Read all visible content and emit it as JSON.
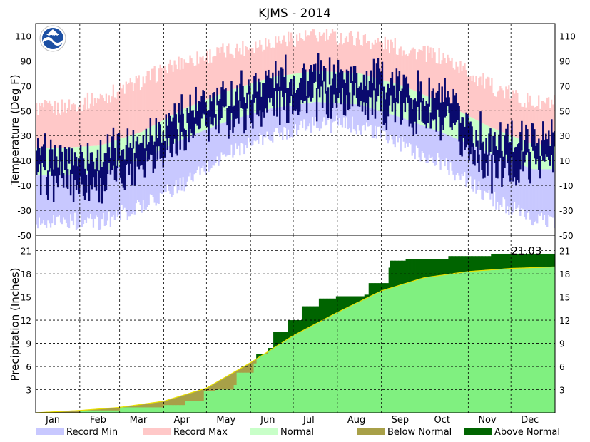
{
  "chart_data": [
    {
      "type": "area",
      "panel": "temperature",
      "title": "KJMS - 2014",
      "ylabel": "Temperature (Deg F)",
      "ylim": [
        -50,
        120
      ],
      "yticks": [
        110,
        90,
        70,
        50,
        30,
        10,
        -10,
        -30,
        -50
      ],
      "months": [
        "Jan",
        "Feb",
        "Mar",
        "Apr",
        "May",
        "Jun",
        "Jul",
        "Aug",
        "Sep",
        "Oct",
        "Nov",
        "Dec"
      ],
      "grid": true,
      "normal_high": [
        20,
        22,
        33,
        52,
        66,
        77,
        82,
        80,
        70,
        55,
        37,
        23
      ],
      "normal_low": [
        -2,
        0,
        11,
        28,
        42,
        52,
        57,
        55,
        44,
        31,
        16,
        3
      ],
      "record_max": [
        52,
        60,
        74,
        90,
        98,
        106,
        110,
        108,
        100,
        92,
        70,
        56
      ],
      "record_min": [
        -38,
        -40,
        -26,
        -8,
        16,
        30,
        40,
        38,
        22,
        6,
        -20,
        -38
      ],
      "observed": [
        {
          "month": "Jan",
          "high": 18,
          "low": -12
        },
        {
          "month": "Feb",
          "high": 14,
          "low": -10
        },
        {
          "month": "Mar",
          "high": 35,
          "low": 5
        },
        {
          "month": "Apr",
          "high": 52,
          "low": 28
        },
        {
          "month": "May",
          "high": 66,
          "low": 40
        },
        {
          "month": "Jun",
          "high": 76,
          "low": 55
        },
        {
          "month": "Jul",
          "high": 80,
          "low": 56
        },
        {
          "month": "Aug",
          "high": 80,
          "low": 57
        },
        {
          "month": "Sep",
          "high": 72,
          "low": 47
        },
        {
          "month": "Oct",
          "high": 60,
          "low": 33
        },
        {
          "month": "Nov",
          "high": 25,
          "low": 0
        },
        {
          "month": "Dec",
          "high": 28,
          "low": 9
        }
      ],
      "noaa_logo_text": "NOAA"
    },
    {
      "type": "area",
      "panel": "precipitation",
      "ylabel": "Precipitation (Inches)",
      "ylim": [
        0,
        23
      ],
      "yticks": [
        21,
        18,
        15,
        12,
        9,
        6,
        3
      ],
      "annotation": "21.03",
      "normal_cumulative": {
        "days": [
          0,
          31,
          59,
          90,
          120,
          151,
          181,
          212,
          243,
          273,
          304,
          334,
          365
        ],
        "values": [
          0,
          0.3,
          0.7,
          1.5,
          3.2,
          6.5,
          10.0,
          13.0,
          15.8,
          17.5,
          18.3,
          18.7,
          18.9
        ]
      },
      "observed_cumulative": {
        "days": [
          0,
          31,
          59,
          90,
          105,
          118,
          126,
          139,
          141,
          153,
          155,
          163,
          167,
          177,
          187,
          199,
          211,
          231,
          234,
          248,
          249,
          260,
          290,
          320,
          365
        ],
        "values": [
          0,
          0.3,
          0.7,
          1.0,
          1.5,
          2.8,
          3.0,
          3.6,
          5.2,
          6.4,
          7.6,
          8.4,
          10.5,
          12.0,
          13.8,
          14.8,
          15.1,
          15.3,
          16.8,
          18.8,
          19.7,
          19.9,
          20.3,
          20.6,
          21.03
        ]
      }
    }
  ],
  "legend": [
    {
      "label": "Record Min",
      "color": "#c8c8ff"
    },
    {
      "label": "Record Max",
      "color": "#ffc8c8"
    },
    {
      "label": "Normal",
      "color": "#c8ffc8"
    },
    {
      "label": "Below Normal",
      "color": "#a8a048"
    },
    {
      "label": "Above Normal",
      "color": "#006400"
    }
  ],
  "colors": {
    "observed_bar": "#0a0a6e",
    "normal_precip": "#80f080",
    "normal_line": "#e8e000"
  }
}
